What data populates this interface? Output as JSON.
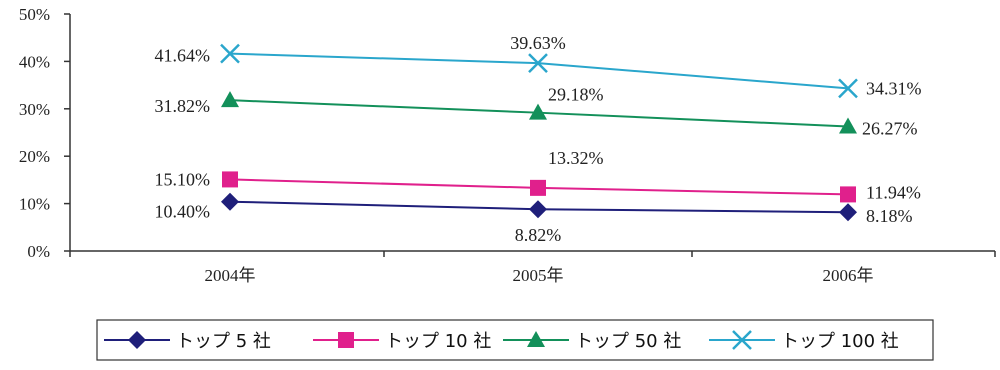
{
  "chart_data": {
    "type": "line",
    "title": "",
    "xlabel": "",
    "ylabel": "",
    "categories": [
      "2004年",
      "2005年",
      "2006年"
    ],
    "ylim": [
      0,
      50
    ],
    "y_ticks": [
      "0%",
      "10%",
      "20%",
      "30%",
      "40%",
      "50%"
    ],
    "grid": false,
    "legend": "bottom",
    "series": [
      {
        "name": "トップ 5 社",
        "values": [
          10.4,
          8.82,
          8.18
        ],
        "labels": [
          "10.40%",
          "8.82%",
          "8.18%"
        ],
        "color": "#1f1f7a",
        "marker": "diamond"
      },
      {
        "name": "トップ 10 社",
        "values": [
          15.1,
          13.32,
          11.94
        ],
        "labels": [
          "15.10%",
          "13.32%",
          "11.94%"
        ],
        "color": "#e0208c",
        "marker": "square"
      },
      {
        "name": "トップ 50 社",
        "values": [
          31.82,
          29.18,
          26.27
        ],
        "labels": [
          "31.82%",
          "29.18%",
          "26.27%"
        ],
        "color": "#13905a",
        "marker": "triangle"
      },
      {
        "name": "トップ 100 社",
        "values": [
          41.64,
          39.63,
          34.31
        ],
        "labels": [
          "41.64%",
          "39.63%",
          "34.31%"
        ],
        "color": "#2aa6cc",
        "marker": "x"
      }
    ]
  }
}
